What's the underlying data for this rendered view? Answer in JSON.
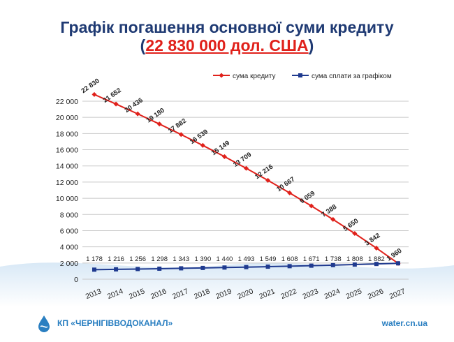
{
  "title": {
    "line1": "Графік погашення основної суми кредиту",
    "open": "(",
    "amount": "22 830 000 дол. США",
    "close": ")"
  },
  "footer": {
    "org": "КП «ЧЕРНІГІВВОДОКАНАЛ»",
    "site": "water.cn.ua",
    "logo_icon": "water-drop-logo-icon"
  },
  "chart_data": {
    "type": "line",
    "categories": [
      "2013",
      "2014",
      "2015",
      "2016",
      "2017",
      "2018",
      "2019",
      "2020",
      "2021",
      "2022",
      "2023",
      "2024",
      "2025",
      "2026",
      "2027"
    ],
    "series": [
      {
        "name": "сума кредиту",
        "color": "#e0211b",
        "values": [
          22830,
          21652,
          20436,
          19180,
          17882,
          16539,
          15149,
          13709,
          12216,
          10667,
          9059,
          7388,
          5650,
          3842,
          1960
        ],
        "labels": [
          "22 830",
          "21 652",
          "20 436",
          "19 180",
          "17 882",
          "16 539",
          "15 149",
          "13 709",
          "12 216",
          "10 667",
          "9 059",
          "7 388",
          "5 650",
          "3 842",
          "1 960"
        ]
      },
      {
        "name": "сума сплати за графіком",
        "color": "#1f3a8f",
        "values": [
          1178,
          1216,
          1256,
          1298,
          1343,
          1390,
          1440,
          1493,
          1549,
          1608,
          1671,
          1738,
          1808,
          1882,
          1960
        ],
        "labels": [
          "1 178",
          "1 216",
          "1 256",
          "1 298",
          "1 343",
          "1 390",
          "1 440",
          "1 493",
          "1 549",
          "1 608",
          "1 671",
          "1 738",
          "1 808",
          "1 882",
          ""
        ]
      }
    ],
    "y_ticks": [
      "0",
      "2 000",
      "4 000",
      "6 000",
      "8 000",
      "10 000",
      "12 000",
      "14 000",
      "16 000",
      "18 000",
      "20 000",
      "22 000"
    ],
    "ylim": [
      0,
      22000
    ],
    "grid": true,
    "legend": "top-right",
    "xlabel": "",
    "ylabel": ""
  }
}
